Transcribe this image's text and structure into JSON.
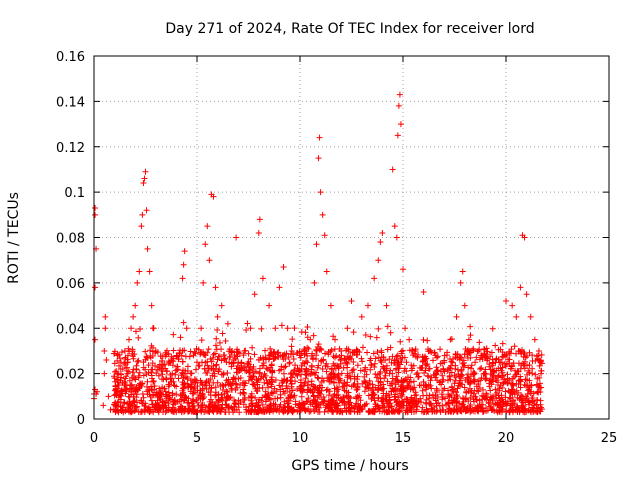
{
  "chart_data": {
    "type": "scatter",
    "title": "Day 271 of 2024, Rate Of TEC Index for receiver lord",
    "xlabel": "GPS time / hours",
    "ylabel": "ROTI / TECUs",
    "xlim": [
      0,
      25
    ],
    "ylim": [
      0,
      0.16
    ],
    "x_ticks": [
      0,
      5,
      10,
      15,
      20,
      25
    ],
    "y_ticks": [
      0,
      0.02,
      0.04,
      0.06,
      0.08,
      0.1,
      0.12,
      0.14,
      0.16
    ],
    "y_tick_labels": [
      "0",
      "0.02",
      "0.04",
      "0.06",
      "0.08",
      "0.1",
      "0.12",
      "0.14",
      "0.16"
    ],
    "grid": true,
    "marker": "+",
    "color": "#ff0000",
    "points": [
      [
        0.0,
        0.009
      ],
      [
        0.0,
        0.011
      ],
      [
        0.05,
        0.013
      ],
      [
        0.05,
        0.035
      ],
      [
        0.05,
        0.058
      ],
      [
        0.05,
        0.09
      ],
      [
        0.05,
        0.093
      ],
      [
        0.1,
        0.075
      ],
      [
        0.1,
        0.011
      ],
      [
        0.15,
        0.012
      ],
      [
        0.45,
        0.006
      ],
      [
        0.5,
        0.02
      ],
      [
        0.5,
        0.03
      ],
      [
        0.55,
        0.045
      ],
      [
        0.55,
        0.04
      ],
      [
        0.6,
        0.026
      ],
      [
        0.7,
        0.01
      ],
      [
        0.8,
        0.004
      ],
      [
        1.0,
        0.018
      ],
      [
        1.1,
        0.012
      ],
      [
        1.3,
        0.022
      ],
      [
        1.5,
        0.03
      ],
      [
        1.6,
        0.015
      ],
      [
        1.7,
        0.035
      ],
      [
        1.8,
        0.04
      ],
      [
        1.9,
        0.045
      ],
      [
        2.0,
        0.05
      ],
      [
        2.1,
        0.06
      ],
      [
        2.2,
        0.065
      ],
      [
        2.3,
        0.085
      ],
      [
        2.35,
        0.09
      ],
      [
        2.4,
        0.104
      ],
      [
        2.45,
        0.106
      ],
      [
        2.5,
        0.109
      ],
      [
        2.55,
        0.092
      ],
      [
        2.6,
        0.075
      ],
      [
        2.7,
        0.065
      ],
      [
        2.8,
        0.05
      ],
      [
        2.9,
        0.04
      ],
      [
        3.0,
        0.03
      ],
      [
        3.2,
        0.024
      ],
      [
        3.5,
        0.018
      ],
      [
        3.8,
        0.02
      ],
      [
        4.0,
        0.028
      ],
      [
        4.2,
        0.036
      ],
      [
        4.3,
        0.062
      ],
      [
        4.35,
        0.068
      ],
      [
        4.4,
        0.074
      ],
      [
        4.5,
        0.04
      ],
      [
        4.7,
        0.02
      ],
      [
        5.0,
        0.025
      ],
      [
        5.2,
        0.04
      ],
      [
        5.3,
        0.06
      ],
      [
        5.4,
        0.077
      ],
      [
        5.5,
        0.085
      ],
      [
        5.6,
        0.07
      ],
      [
        5.7,
        0.099
      ],
      [
        5.8,
        0.098
      ],
      [
        5.9,
        0.058
      ],
      [
        6.0,
        0.045
      ],
      [
        6.2,
        0.05
      ],
      [
        6.5,
        0.042
      ],
      [
        6.7,
        0.03
      ],
      [
        6.9,
        0.08
      ],
      [
        7.0,
        0.025
      ],
      [
        7.3,
        0.03
      ],
      [
        7.6,
        0.04
      ],
      [
        7.8,
        0.055
      ],
      [
        8.0,
        0.082
      ],
      [
        8.05,
        0.088
      ],
      [
        8.2,
        0.062
      ],
      [
        8.5,
        0.05
      ],
      [
        8.8,
        0.04
      ],
      [
        9.0,
        0.058
      ],
      [
        9.2,
        0.067
      ],
      [
        9.4,
        0.04
      ],
      [
        9.6,
        0.03
      ],
      [
        9.8,
        0.02
      ],
      [
        10.0,
        0.028
      ],
      [
        10.2,
        0.03
      ],
      [
        10.5,
        0.035
      ],
      [
        10.7,
        0.06
      ],
      [
        10.8,
        0.077
      ],
      [
        10.9,
        0.115
      ],
      [
        10.95,
        0.124
      ],
      [
        11.0,
        0.1
      ],
      [
        11.1,
        0.09
      ],
      [
        11.2,
        0.081
      ],
      [
        11.3,
        0.065
      ],
      [
        11.5,
        0.05
      ],
      [
        11.7,
        0.035
      ],
      [
        12.0,
        0.03
      ],
      [
        12.3,
        0.04
      ],
      [
        12.5,
        0.052
      ],
      [
        12.8,
        0.03
      ],
      [
        13.0,
        0.045
      ],
      [
        13.3,
        0.05
      ],
      [
        13.6,
        0.062
      ],
      [
        13.8,
        0.07
      ],
      [
        13.9,
        0.078
      ],
      [
        14.0,
        0.082
      ],
      [
        14.2,
        0.05
      ],
      [
        14.4,
        0.038
      ],
      [
        14.5,
        0.11
      ],
      [
        14.6,
        0.085
      ],
      [
        14.7,
        0.08
      ],
      [
        14.75,
        0.125
      ],
      [
        14.8,
        0.138
      ],
      [
        14.85,
        0.143
      ],
      [
        14.9,
        0.13
      ],
      [
        15.0,
        0.066
      ],
      [
        15.1,
        0.04
      ],
      [
        15.3,
        0.035
      ],
      [
        15.6,
        0.03
      ],
      [
        16.0,
        0.056
      ],
      [
        16.3,
        0.03
      ],
      [
        16.6,
        0.02
      ],
      [
        17.0,
        0.025
      ],
      [
        17.3,
        0.035
      ],
      [
        17.6,
        0.045
      ],
      [
        17.8,
        0.06
      ],
      [
        17.9,
        0.065
      ],
      [
        18.0,
        0.05
      ],
      [
        18.2,
        0.035
      ],
      [
        18.5,
        0.025
      ],
      [
        19.0,
        0.02
      ],
      [
        19.5,
        0.018
      ],
      [
        19.8,
        0.025
      ],
      [
        20.0,
        0.052
      ],
      [
        20.3,
        0.05
      ],
      [
        20.5,
        0.045
      ],
      [
        20.7,
        0.058
      ],
      [
        20.8,
        0.081
      ],
      [
        20.9,
        0.08
      ],
      [
        21.0,
        0.055
      ],
      [
        21.2,
        0.045
      ],
      [
        21.4,
        0.035
      ],
      [
        21.6,
        0.03
      ],
      [
        21.7,
        0.02
      ],
      [
        21.7,
        0.005
      ]
    ]
  }
}
